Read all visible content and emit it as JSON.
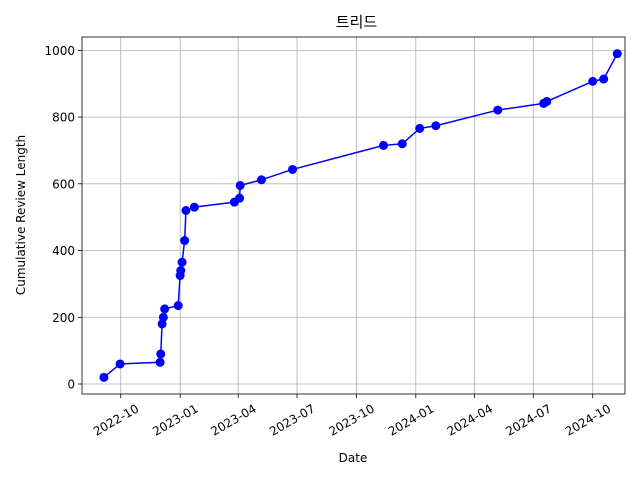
{
  "chart_data": {
    "type": "line",
    "title": "트리드",
    "xlabel": "Date",
    "ylabel": "Cumulative Review Length",
    "x_type": "date",
    "xlim": [
      "2022-08-02",
      "2024-11-20"
    ],
    "ylim": [
      -30,
      1040
    ],
    "grid": true,
    "x_ticks": [
      "2022-10-01",
      "2023-01-01",
      "2023-04-01",
      "2023-07-01",
      "2023-10-01",
      "2024-01-01",
      "2024-04-01",
      "2024-07-01",
      "2024-10-01"
    ],
    "x_tick_labels": [
      "2022-10",
      "2023-01",
      "2023-04",
      "2023-07",
      "2023-10",
      "2024-01",
      "2024-04",
      "2024-07",
      "2024-10"
    ],
    "y_ticks": [
      0,
      200,
      400,
      600,
      800,
      1000
    ],
    "y_tick_labels": [
      "0",
      "200",
      "400",
      "600",
      "800",
      "1000"
    ],
    "color": "#0000ff",
    "series": [
      {
        "x": [
          "2022-09-05",
          "2022-09-30",
          "2022-12-01",
          "2022-12-02",
          "2022-12-04",
          "2022-12-06",
          "2022-12-08",
          "2022-12-29",
          "2023-01-01",
          "2023-01-02",
          "2023-01-04",
          "2023-01-08",
          "2023-01-10",
          "2023-01-23",
          "2023-03-26",
          "2023-04-03",
          "2023-04-04",
          "2023-05-07",
          "2023-06-24",
          "2023-11-12",
          "2023-12-11",
          "2024-01-07",
          "2024-02-01",
          "2024-05-07",
          "2024-07-17",
          "2024-07-22",
          "2024-10-01",
          "2024-10-18",
          "2024-11-08"
        ],
        "y": [
          20,
          60,
          65,
          90,
          180,
          200,
          225,
          235,
          325,
          340,
          365,
          430,
          520,
          530,
          545,
          557,
          595,
          612,
          643,
          715,
          720,
          766,
          774,
          821,
          841,
          847,
          907,
          914,
          990
        ]
      }
    ]
  }
}
